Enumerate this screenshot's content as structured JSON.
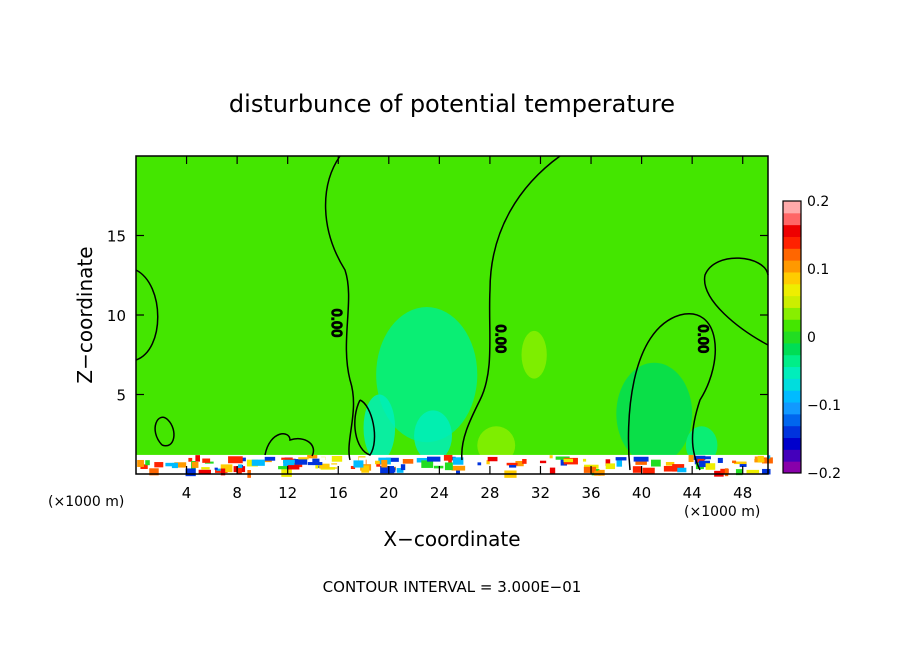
{
  "chart_data": {
    "type": "heatmap",
    "title": "disturbunce of potential temperature",
    "xlabel": "X−coordinate",
    "ylabel": "Z−coordinate",
    "x_unit_label": "(×1000 m)",
    "x_unit_label_right": "(×1000 m)",
    "footer": "CONTOUR INTERVAL = 3.000E−01",
    "xlim": [
      0,
      50
    ],
    "ylim": [
      0,
      20
    ],
    "x_ticks": [
      {
        "value": 4,
        "label": "4"
      },
      {
        "value": 8,
        "label": "8"
      },
      {
        "value": 12,
        "label": "12"
      },
      {
        "value": 16,
        "label": "16"
      },
      {
        "value": 20,
        "label": "20"
      },
      {
        "value": 24,
        "label": "24"
      },
      {
        "value": 28,
        "label": "28"
      },
      {
        "value": 32,
        "label": "32"
      },
      {
        "value": 36,
        "label": "36"
      },
      {
        "value": 40,
        "label": "40"
      },
      {
        "value": 44,
        "label": "44"
      },
      {
        "value": 48,
        "label": "48"
      }
    ],
    "y_ticks": [
      {
        "value": 5,
        "label": "5"
      },
      {
        "value": 10,
        "label": "10"
      },
      {
        "value": 15,
        "label": "15"
      }
    ],
    "colorbar": {
      "range": [
        -0.2,
        0.2
      ],
      "ticks": [
        {
          "value": 0.2,
          "label": "0.2"
        },
        {
          "value": 0.1,
          "label": "0.1"
        },
        {
          "value": 0,
          "label": "0"
        },
        {
          "value": -0.1,
          "label": "−0.1"
        },
        {
          "value": -0.2,
          "label": "−0.2"
        }
      ],
      "colors": [
        "#8800aa",
        "#4400bb",
        "#0000cc",
        "#0033dd",
        "#0066ee",
        "#1199ff",
        "#00bbff",
        "#00dddd",
        "#00eebb",
        "#00ee88",
        "#00dd55",
        "#22dd22",
        "#44e600",
        "#88ee00",
        "#ccee00",
        "#eeee00",
        "#ffcc00",
        "#ff9900",
        "#ff6600",
        "#ff2200",
        "#ee0000",
        "#ff6666",
        "#ffaaaa"
      ]
    },
    "background_value": 0.01,
    "field_regions": [
      {
        "x": [
          19,
          27
        ],
        "z": [
          2,
          10.5
        ],
        "value": -0.03
      },
      {
        "x": [
          18,
          20.5
        ],
        "z": [
          0.8,
          5
        ],
        "value": -0.05
      },
      {
        "x": [
          22,
          25
        ],
        "z": [
          0.8,
          4
        ],
        "value": -0.05
      },
      {
        "x": [
          30.5,
          32.5
        ],
        "z": [
          6,
          9
        ],
        "value": 0.04
      },
      {
        "x": [
          27,
          30
        ],
        "z": [
          0.6,
          3
        ],
        "value": 0.03
      },
      {
        "x": [
          38,
          44
        ],
        "z": [
          0.6,
          7
        ],
        "value": -0.02
      },
      {
        "x": [
          43.5,
          46
        ],
        "z": [
          0.6,
          3
        ],
        "value": -0.04
      }
    ],
    "surface_layer": {
      "z_range": [
        0,
        1.2
      ],
      "note": "strong positive and negative anomalies near the ground"
    },
    "contour_labels": [
      {
        "label": "0.00",
        "x": 15.5,
        "z": 9.5
      },
      {
        "label": "0.00",
        "x": 28.5,
        "z": 8.5
      },
      {
        "label": "0.00",
        "x": 44.5,
        "z": 8.5
      }
    ]
  }
}
